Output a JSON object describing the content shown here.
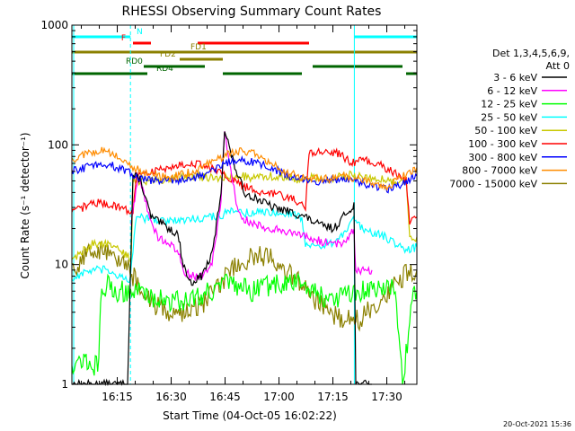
{
  "chart_data": {
    "type": "line",
    "title": "RHESSI Observing Summary Count Rates",
    "xlabel": "Start Time (04-Oct-05 16:02:22)",
    "ylabel": "Count Rate (s⁻¹ detector⁻¹)",
    "yscale": "log",
    "ylim": [
      1,
      1000
    ],
    "xlim_minutes": [
      0,
      96
    ],
    "x_tick_labels": [
      "16:15",
      "16:30",
      "16:45",
      "17:00",
      "17:15",
      "17:30"
    ],
    "x_tick_minutes": [
      12.63,
      27.63,
      42.63,
      57.63,
      72.63,
      87.63
    ],
    "y_tick_labels": [
      "1",
      "10",
      "100",
      "1000"
    ],
    "y_tick_values": [
      1,
      10,
      100,
      1000
    ],
    "legend_header": [
      "Det 1,3,4,5,6,9,",
      "Att 0"
    ],
    "legend_placement": "right",
    "footer": "20-Oct-2021 15:36",
    "vertical_markers_minutes": [
      16.3,
      78.6,
      96.0
    ],
    "flags": [
      {
        "label": "N",
        "color": "#00ffff",
        "segments": [
          [
            0,
            16.3
          ],
          [
            78.6,
            96
          ]
        ]
      },
      {
        "label": "F",
        "color": "#ff0000",
        "segments": [
          [
            17,
            22
          ],
          [
            35,
            66
          ]
        ]
      },
      {
        "label": "FD1",
        "color": "#8b8000",
        "segments": [
          [
            0,
            96
          ]
        ]
      },
      {
        "label": "FD2",
        "color": "#8b8000",
        "segments": [
          [
            30,
            42
          ]
        ]
      },
      {
        "label": "RD0",
        "color": "#006400",
        "segments": [
          [
            20,
            37
          ],
          [
            67,
            92
          ]
        ]
      },
      {
        "label": "RD4",
        "color": "#006400",
        "segments": [
          [
            0,
            21
          ],
          [
            42,
            64
          ],
          [
            93,
            96
          ]
        ]
      }
    ],
    "series": [
      {
        "name": "3 - 6 keV",
        "color": "#000000",
        "x": [
          0,
          7.5,
          8,
          12,
          15.5,
          17,
          19,
          22,
          27,
          29.5,
          31,
          33,
          36,
          39,
          41.5,
          42.5,
          45,
          48,
          52,
          56,
          60,
          65,
          68,
          70,
          73,
          75,
          77,
          78.5,
          79,
          80,
          82,
          83.5
        ],
        "y": [
          1,
          1,
          1,
          1,
          1,
          55,
          52,
          25,
          20,
          18,
          10,
          7,
          8,
          12,
          40,
          135,
          70,
          40,
          35,
          30,
          28,
          25,
          22,
          21,
          20,
          24,
          28,
          32,
          1,
          1,
          1,
          1
        ]
      },
      {
        "name": "6 - 12 keV",
        "color": "#ff00ff",
        "x": [
          16.5,
          17.5,
          18.5,
          20,
          22,
          24,
          27,
          30,
          31,
          33,
          36,
          39,
          41.5,
          42.5,
          44.5,
          46,
          48,
          52,
          56,
          60,
          62,
          64,
          66,
          66.5,
          68,
          72,
          75,
          77,
          78.5,
          79,
          81,
          83.5
        ],
        "y": [
          22,
          35,
          55,
          40,
          22,
          17,
          15,
          12,
          9,
          8,
          8,
          10,
          35,
          130,
          55,
          30,
          24,
          21,
          20,
          19,
          18,
          17,
          17,
          16,
          16,
          15,
          15,
          17,
          20,
          9,
          9,
          9
        ]
      },
      {
        "name": "12 - 25 keV",
        "color": "#00ff00",
        "x": [
          0,
          3,
          7.5,
          8,
          10,
          12,
          18,
          26,
          32,
          38,
          44,
          46,
          50,
          54,
          58,
          64,
          68,
          72,
          76,
          80,
          84,
          86,
          88,
          90,
          92,
          95,
          96
        ],
        "y": [
          1.5,
          1.6,
          1.4,
          5,
          7,
          6,
          6,
          5,
          5,
          6,
          7,
          6.5,
          6,
          6.5,
          7,
          7,
          6,
          5,
          5.5,
          6,
          6,
          6.5,
          7,
          6.5,
          1,
          6,
          6
        ]
      },
      {
        "name": "25 - 50 keV",
        "color": "#00ffff",
        "x": [
          0,
          3,
          6,
          9,
          12,
          16,
          18,
          22,
          28,
          33,
          38,
          42,
          44,
          46,
          50,
          54,
          58,
          62,
          64,
          65,
          68,
          72,
          76,
          78,
          80,
          82,
          86,
          90,
          93,
          96
        ],
        "y": [
          7.5,
          8.5,
          9,
          9,
          8.5,
          7,
          25,
          24,
          23,
          24,
          25,
          26,
          28,
          27,
          27,
          28,
          27,
          26,
          25,
          15,
          14,
          15,
          18,
          24,
          21,
          19,
          18,
          15,
          13,
          14
        ]
      },
      {
        "name": "50 - 100 keV",
        "color": "#c8c800",
        "x": [
          0,
          3,
          6,
          9,
          12,
          15,
          16.5,
          17,
          22,
          28,
          33,
          38,
          41,
          44,
          47,
          50,
          56,
          62,
          64,
          65,
          68,
          72,
          76,
          78,
          80,
          86,
          90,
          93,
          94,
          96
        ],
        "y": [
          11,
          13,
          15,
          15,
          14,
          12,
          11,
          50,
          50,
          52,
          55,
          53,
          52,
          55,
          55,
          53,
          55,
          52,
          50,
          53,
          53,
          52,
          55,
          56,
          54,
          52,
          50,
          50,
          16,
          17
        ]
      },
      {
        "name": "100 - 300 keV",
        "color": "#ff0000",
        "x": [
          0,
          3,
          6,
          10,
          14,
          16,
          17,
          18,
          24,
          30,
          34,
          38,
          42,
          46,
          50,
          54,
          58,
          62,
          64,
          65,
          66,
          70,
          74,
          78,
          80,
          84,
          88,
          91,
          93,
          94,
          96
        ],
        "y": [
          27,
          30,
          33,
          32,
          30,
          28,
          28,
          55,
          62,
          68,
          70,
          66,
          56,
          48,
          42,
          40,
          38,
          35,
          32,
          30,
          85,
          88,
          85,
          70,
          75,
          72,
          62,
          55,
          50,
          22,
          25
        ]
      },
      {
        "name": "300 - 800 keV",
        "color": "#0000ff",
        "x": [
          0,
          4,
          8,
          12,
          16,
          20,
          24,
          28,
          32,
          36,
          40,
          44,
          48,
          52,
          56,
          60,
          64,
          68,
          72,
          76,
          80,
          84,
          88,
          90,
          92,
          94,
          96
        ],
        "y": [
          60,
          65,
          70,
          66,
          58,
          52,
          50,
          50,
          52,
          55,
          63,
          72,
          75,
          70,
          63,
          55,
          52,
          50,
          50,
          52,
          48,
          45,
          43,
          44,
          48,
          52,
          55
        ]
      },
      {
        "name": "800 - 7000 keV",
        "color": "#ff8c00",
        "x": [
          0,
          4,
          8,
          12,
          16,
          20,
          24,
          28,
          32,
          36,
          40,
          44,
          48,
          52,
          56,
          60,
          64,
          68,
          72,
          76,
          80,
          84,
          88,
          92,
          96
        ],
        "y": [
          75,
          85,
          90,
          82,
          68,
          58,
          55,
          54,
          58,
          65,
          75,
          85,
          90,
          82,
          68,
          58,
          54,
          53,
          52,
          55,
          52,
          48,
          45,
          55,
          65
        ]
      },
      {
        "name": "7000 - 15000 keV",
        "color": "#8b8000",
        "x": [
          0,
          3,
          6,
          9,
          12,
          15,
          17,
          20,
          24,
          28,
          32,
          36,
          40,
          44,
          48,
          52,
          56,
          60,
          64,
          68,
          72,
          76,
          80,
          84,
          88,
          91,
          93,
          96
        ],
        "y": [
          9,
          11.5,
          13,
          13,
          12,
          10,
          8,
          5.5,
          4.5,
          4,
          4,
          4.5,
          6,
          9,
          11,
          12,
          11,
          9,
          7,
          5,
          4,
          3.5,
          3.5,
          4.5,
          6,
          7,
          8.5,
          9
        ]
      }
    ]
  }
}
